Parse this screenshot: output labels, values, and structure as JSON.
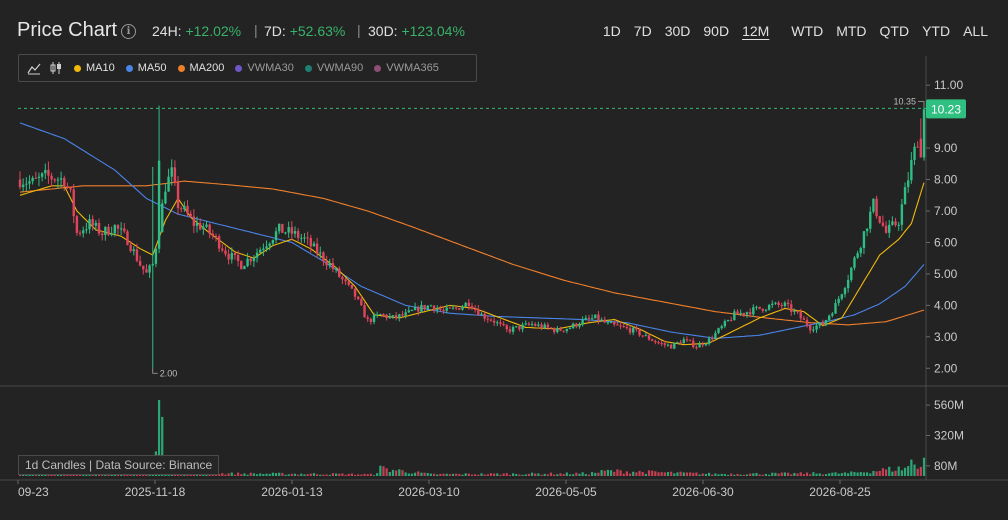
{
  "header": {
    "title": "Price Chart",
    "changes": [
      {
        "label": "24H:",
        "value": "+12.02%"
      },
      {
        "label": "7D:",
        "value": "+52.63%"
      },
      {
        "label": "30D:",
        "value": "+123.04%"
      }
    ],
    "ranges": [
      "1D",
      "7D",
      "30D",
      "90D",
      "12M",
      "WTD",
      "MTD",
      "QTD",
      "YTD",
      "ALL"
    ],
    "active_range": "12M"
  },
  "legend": {
    "tools": [
      "line-chart-icon",
      "candlestick-icon"
    ],
    "items": [
      {
        "label": "MA10",
        "color": "#f0b90b"
      },
      {
        "label": "MA50",
        "color": "#4a84e8"
      },
      {
        "label": "MA200",
        "color": "#f07f2a"
      },
      {
        "label": "VWMA30",
        "color": "#6e57c7"
      },
      {
        "label": "VWMA90",
        "color": "#1e7f72"
      },
      {
        "label": "VWMA365",
        "color": "#8f4d78"
      }
    ]
  },
  "footer_label": "1d Candles | Data Source: Binance",
  "colors": {
    "up": "#2ebd85",
    "down": "#e0455b",
    "bg": "#232323",
    "grid": "#3a3a3a"
  },
  "chart_data": {
    "type": "candlestick",
    "y_ticks": [
      2.0,
      3.0,
      4.0,
      5.0,
      6.0,
      7.0,
      8.0,
      9.0,
      11.0
    ],
    "y_tick_labels": [
      "2.00",
      "3.00",
      "4.00",
      "5.00",
      "6.00",
      "7.00",
      "8.00",
      "9.00",
      "11.00"
    ],
    "ylim": [
      1.5,
      11.8
    ],
    "x_ticks": [
      "09-23",
      "2025-11-18",
      "2026-01-13",
      "2026-03-10",
      "2026-05-05",
      "2026-06-30",
      "2026-08-25"
    ],
    "last_price": "10.23",
    "high_marker": "10.35",
    "low_marker": "2.00",
    "volume_ticks": [
      "80M",
      "320M",
      "560M"
    ],
    "volume_ylim": [
      0,
      600
    ],
    "price_anchors": [
      [
        0,
        8.0
      ],
      [
        4,
        7.9
      ],
      [
        8,
        8.1
      ],
      [
        14,
        8.0
      ],
      [
        16,
        7.5
      ],
      [
        18,
        6.3
      ],
      [
        22,
        6.6
      ],
      [
        26,
        6.3
      ],
      [
        30,
        6.5
      ],
      [
        34,
        6.1
      ],
      [
        38,
        5.3
      ],
      [
        40,
        5.0
      ],
      [
        42,
        5.3
      ],
      [
        44,
        6.5
      ],
      [
        46,
        7.8
      ],
      [
        48,
        8.2
      ],
      [
        50,
        7.2
      ],
      [
        52,
        7.0
      ],
      [
        55,
        6.6
      ],
      [
        58,
        6.5
      ],
      [
        62,
        6.1
      ],
      [
        66,
        5.6
      ],
      [
        70,
        5.3
      ],
      [
        74,
        5.6
      ],
      [
        78,
        6.0
      ],
      [
        82,
        6.4
      ],
      [
        86,
        6.3
      ],
      [
        90,
        6.1
      ],
      [
        94,
        5.7
      ],
      [
        98,
        5.3
      ],
      [
        102,
        4.8
      ],
      [
        106,
        4.3
      ],
      [
        110,
        3.5
      ],
      [
        114,
        3.7
      ],
      [
        118,
        3.6
      ],
      [
        122,
        3.7
      ],
      [
        126,
        3.9
      ],
      [
        130,
        4.0
      ],
      [
        134,
        3.8
      ],
      [
        138,
        3.9
      ],
      [
        142,
        4.1
      ],
      [
        146,
        3.7
      ],
      [
        150,
        3.5
      ],
      [
        154,
        3.2
      ],
      [
        158,
        3.3
      ],
      [
        162,
        3.4
      ],
      [
        166,
        3.3
      ],
      [
        170,
        3.2
      ],
      [
        174,
        3.3
      ],
      [
        178,
        3.5
      ],
      [
        182,
        3.6
      ],
      [
        186,
        3.4
      ],
      [
        190,
        3.3
      ],
      [
        194,
        3.2
      ],
      [
        198,
        3.0
      ],
      [
        202,
        2.8
      ],
      [
        206,
        2.7
      ],
      [
        210,
        2.9
      ],
      [
        214,
        2.7
      ],
      [
        218,
        2.9
      ],
      [
        222,
        3.3
      ],
      [
        226,
        3.7
      ],
      [
        230,
        3.8
      ],
      [
        234,
        3.9
      ],
      [
        238,
        4.0
      ],
      [
        242,
        4.0
      ],
      [
        246,
        3.7
      ],
      [
        250,
        3.3
      ],
      [
        254,
        3.4
      ],
      [
        258,
        4.0
      ],
      [
        262,
        4.9
      ],
      [
        266,
        6.0
      ],
      [
        270,
        7.2
      ],
      [
        274,
        6.3
      ],
      [
        278,
        6.7
      ],
      [
        282,
        8.5
      ],
      [
        284,
        9.3
      ],
      [
        286,
        10.23
      ]
    ],
    "ma10_anchors": [
      [
        0,
        7.5
      ],
      [
        10,
        7.8
      ],
      [
        14,
        7.8
      ],
      [
        18,
        7.0
      ],
      [
        24,
        6.4
      ],
      [
        32,
        6.2
      ],
      [
        38,
        5.8
      ],
      [
        42,
        5.6
      ],
      [
        46,
        6.7
      ],
      [
        50,
        7.4
      ],
      [
        54,
        6.8
      ],
      [
        60,
        6.3
      ],
      [
        68,
        5.7
      ],
      [
        74,
        5.5
      ],
      [
        80,
        5.9
      ],
      [
        86,
        6.1
      ],
      [
        92,
        5.8
      ],
      [
        100,
        5.2
      ],
      [
        106,
        4.6
      ],
      [
        112,
        3.7
      ],
      [
        120,
        3.6
      ],
      [
        128,
        3.8
      ],
      [
        136,
        4.0
      ],
      [
        144,
        3.9
      ],
      [
        152,
        3.6
      ],
      [
        160,
        3.3
      ],
      [
        170,
        3.25
      ],
      [
        180,
        3.45
      ],
      [
        188,
        3.55
      ],
      [
        196,
        3.25
      ],
      [
        204,
        2.85
      ],
      [
        210,
        2.75
      ],
      [
        218,
        2.8
      ],
      [
        226,
        3.2
      ],
      [
        234,
        3.6
      ],
      [
        242,
        3.9
      ],
      [
        248,
        3.8
      ],
      [
        254,
        3.35
      ],
      [
        260,
        3.6
      ],
      [
        266,
        4.6
      ],
      [
        272,
        5.6
      ],
      [
        278,
        6.1
      ],
      [
        282,
        6.6
      ],
      [
        286,
        7.9
      ]
    ],
    "ma50_anchors": [
      [
        0,
        9.8
      ],
      [
        14,
        9.3
      ],
      [
        30,
        8.3
      ],
      [
        40,
        7.4
      ],
      [
        50,
        6.9
      ],
      [
        62,
        6.6
      ],
      [
        74,
        6.3
      ],
      [
        86,
        6.0
      ],
      [
        96,
        5.4
      ],
      [
        108,
        4.6
      ],
      [
        122,
        4.0
      ],
      [
        136,
        3.75
      ],
      [
        150,
        3.65
      ],
      [
        164,
        3.6
      ],
      [
        178,
        3.55
      ],
      [
        192,
        3.45
      ],
      [
        206,
        3.15
      ],
      [
        220,
        2.95
      ],
      [
        234,
        3.05
      ],
      [
        246,
        3.3
      ],
      [
        256,
        3.5
      ],
      [
        264,
        3.7
      ],
      [
        272,
        4.05
      ],
      [
        280,
        4.6
      ],
      [
        286,
        5.3
      ]
    ],
    "ma200_anchors": [
      [
        0,
        7.6
      ],
      [
        20,
        7.8
      ],
      [
        40,
        7.8
      ],
      [
        52,
        7.95
      ],
      [
        64,
        7.85
      ],
      [
        80,
        7.7
      ],
      [
        96,
        7.4
      ],
      [
        110,
        7.0
      ],
      [
        124,
        6.5
      ],
      [
        140,
        5.9
      ],
      [
        156,
        5.3
      ],
      [
        172,
        4.8
      ],
      [
        188,
        4.4
      ],
      [
        204,
        4.1
      ],
      [
        220,
        3.8
      ],
      [
        236,
        3.6
      ],
      [
        250,
        3.45
      ],
      [
        262,
        3.38
      ],
      [
        274,
        3.48
      ],
      [
        286,
        3.85
      ]
    ],
    "volume_anchors": [
      [
        0,
        14
      ],
      [
        40,
        18
      ],
      [
        42,
        120
      ],
      [
        44,
        600
      ],
      [
        46,
        30
      ],
      [
        60,
        20
      ],
      [
        100,
        16
      ],
      [
        112,
        12
      ],
      [
        114,
        60
      ],
      [
        130,
        14
      ],
      [
        180,
        20
      ],
      [
        186,
        40
      ],
      [
        220,
        16
      ],
      [
        262,
        22
      ],
      [
        270,
        40
      ],
      [
        276,
        55
      ],
      [
        280,
        60
      ],
      [
        282,
        110
      ],
      [
        284,
        70
      ],
      [
        286,
        160
      ]
    ]
  }
}
